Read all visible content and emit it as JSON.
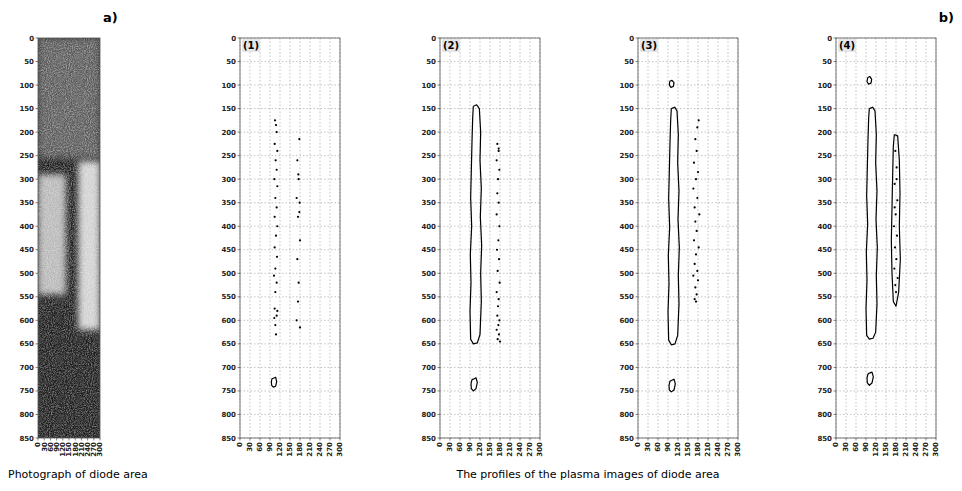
{
  "figure_labels": {
    "a": "a)",
    "b": "b)"
  },
  "captions": {
    "a": "Photograph of diode area",
    "b": "The profiles of the plasma images of diode area"
  },
  "chart_data": [
    {
      "type": "image",
      "title": "",
      "xlim": [
        0,
        300
      ],
      "ylim": [
        850,
        0
      ],
      "xticks": [
        0,
        30,
        60,
        90,
        120,
        150,
        180,
        210,
        240,
        270,
        300
      ],
      "yticks": [
        0,
        50,
        100,
        150,
        200,
        250,
        300,
        350,
        400,
        450,
        500,
        550,
        600,
        650,
        700,
        750,
        800,
        850
      ],
      "grid": false,
      "regions": [
        {
          "x": [
            0,
            300
          ],
          "y": [
            0,
            850
          ],
          "brightness": 12
        },
        {
          "x": [
            0,
            300
          ],
          "y": [
            0,
            255
          ],
          "brightness": 36
        },
        {
          "x": [
            0,
            135
          ],
          "y": [
            290,
            545
          ],
          "brightness": 72
        },
        {
          "x": [
            195,
            300
          ],
          "y": [
            262,
            620
          ],
          "brightness": 82
        }
      ]
    },
    {
      "type": "contour",
      "title": "(1)",
      "xlim": [
        0,
        300
      ],
      "ylim": [
        850,
        0
      ],
      "xticks": [
        0,
        30,
        60,
        90,
        120,
        150,
        180,
        210,
        240,
        270,
        300
      ],
      "yticks": [
        0,
        50,
        100,
        150,
        200,
        250,
        300,
        350,
        400,
        450,
        500,
        550,
        600,
        650,
        700,
        750,
        800,
        850
      ],
      "grid": true,
      "contours": [
        {
          "x": [
            100,
            107,
            110,
            107,
            100,
            95,
            94,
            96,
            100
          ],
          "y": [
            723,
            721,
            730,
            740,
            742,
            738,
            730,
            724,
            723
          ]
        }
      ],
      "points": {
        "x": [
          105,
          108,
          110,
          104,
          112,
          107,
          110,
          103,
          112,
          106,
          110,
          104,
          112,
          108,
          104,
          111,
          106,
          102,
          110,
          106,
          104,
          110,
          106,
          108,
          103,
          112,
          178,
          172,
          176,
          170,
          178,
          174,
          180,
          172,
          176,
          174,
          170,
          180,
          175,
          179
        ],
        "y": [
          175,
          185,
          200,
          225,
          240,
          260,
          280,
          300,
          315,
          340,
          360,
          380,
          400,
          420,
          445,
          465,
          490,
          505,
          520,
          540,
          575,
          590,
          610,
          630,
          595,
          580,
          215,
          260,
          300,
          340,
          370,
          380,
          430,
          470,
          520,
          560,
          600,
          615,
          290,
          350
        ]
      }
    },
    {
      "type": "contour",
      "title": "(2)",
      "xlim": [
        0,
        300
      ],
      "ylim": [
        850,
        0
      ],
      "xticks": [
        0,
        30,
        60,
        90,
        120,
        150,
        180,
        210,
        240,
        270,
        300
      ],
      "yticks": [
        0,
        50,
        100,
        150,
        200,
        250,
        300,
        350,
        400,
        450,
        500,
        550,
        600,
        650,
        700,
        750,
        800,
        850
      ],
      "grid": true,
      "contours": [
        {
          "x": [
            100,
            110,
            118,
            122,
            120,
            124,
            121,
            125,
            122,
            124,
            120,
            112,
            100,
            92,
            90,
            93,
            91,
            95,
            92,
            94,
            96,
            98,
            100
          ],
          "y": [
            145,
            142,
            150,
            200,
            260,
            320,
            380,
            440,
            500,
            560,
            630,
            648,
            650,
            640,
            580,
            520,
            460,
            400,
            340,
            280,
            220,
            170,
            145
          ]
        },
        {
          "x": [
            100,
            108,
            112,
            108,
            100,
            94,
            93,
            96,
            100
          ],
          "y": [
            725,
            722,
            732,
            745,
            750,
            745,
            735,
            726,
            725
          ]
        }
      ],
      "points": {
        "x": [
          172,
          176,
          170,
          178,
          174,
          172,
          176,
          170,
          178,
          175,
          171,
          177,
          173,
          179,
          170,
          176,
          174,
          172,
          178,
          175,
          170,
          177,
          173,
          180,
          176
        ],
        "y": [
          225,
          240,
          260,
          280,
          300,
          330,
          350,
          375,
          400,
          430,
          450,
          470,
          495,
          520,
          540,
          555,
          570,
          590,
          600,
          610,
          620,
          630,
          640,
          645,
          235
        ]
      }
    },
    {
      "type": "contour",
      "title": "(3)",
      "xlim": [
        0,
        300
      ],
      "ylim": [
        850,
        0
      ],
      "xticks": [
        0,
        30,
        60,
        90,
        120,
        150,
        180,
        210,
        240,
        270,
        300
      ],
      "yticks": [
        0,
        50,
        100,
        150,
        200,
        250,
        300,
        350,
        400,
        450,
        500,
        550,
        600,
        650,
        700,
        750,
        800,
        850
      ],
      "grid": true,
      "contours": [
        {
          "x": [
            95,
            102,
            108,
            106,
            99,
            94,
            95
          ],
          "y": [
            92,
            90,
            95,
            103,
            105,
            100,
            92
          ]
        },
        {
          "x": [
            100,
            110,
            117,
            121,
            119,
            123,
            120,
            124,
            121,
            123,
            119,
            111,
            100,
            92,
            90,
            93,
            91,
            95,
            92,
            94,
            96,
            98,
            100
          ],
          "y": [
            150,
            147,
            155,
            205,
            265,
            325,
            385,
            445,
            505,
            565,
            632,
            650,
            652,
            642,
            582,
            522,
            462,
            402,
            342,
            282,
            222,
            175,
            150
          ]
        },
        {
          "x": [
            100,
            108,
            112,
            108,
            100,
            94,
            93,
            96,
            100
          ],
          "y": [
            728,
            725,
            735,
            748,
            752,
            748,
            738,
            729,
            728
          ]
        }
      ],
      "points": {
        "x": [
          182,
          178,
          172,
          176,
          168,
          180,
          174,
          166,
          178,
          170,
          184,
          172,
          176,
          168,
          182,
          174,
          170,
          178,
          166,
          180,
          172,
          176,
          170,
          174
        ],
        "y": [
          175,
          190,
          215,
          240,
          265,
          285,
          300,
          320,
          340,
          360,
          375,
          390,
          410,
          430,
          445,
          460,
          480,
          495,
          505,
          515,
          530,
          545,
          555,
          560
        ]
      }
    },
    {
      "type": "contour",
      "title": "(4)",
      "xlim": [
        0,
        300
      ],
      "ylim": [
        850,
        0
      ],
      "xticks": [
        0,
        30,
        60,
        90,
        120,
        150,
        180,
        210,
        240,
        270,
        300
      ],
      "yticks": [
        0,
        50,
        100,
        150,
        200,
        250,
        300,
        350,
        400,
        450,
        500,
        550,
        600,
        650,
        700,
        750,
        800,
        850
      ],
      "grid": true,
      "contours": [
        {
          "x": [
            95,
            102,
            107,
            105,
            98,
            93,
            95
          ],
          "y": [
            84,
            82,
            88,
            96,
            98,
            93,
            84
          ]
        },
        {
          "x": [
            100,
            110,
            117,
            121,
            119,
            123,
            120,
            124,
            121,
            123,
            119,
            111,
            100,
            92,
            90,
            93,
            91,
            95,
            92,
            94,
            96,
            98,
            100
          ],
          "y": [
            150,
            147,
            155,
            205,
            265,
            325,
            385,
            445,
            505,
            565,
            625,
            638,
            640,
            632,
            575,
            515,
            455,
            395,
            335,
            275,
            215,
            170,
            150
          ]
        },
        {
          "x": [
            100,
            108,
            112,
            108,
            100,
            94,
            93,
            96,
            100
          ],
          "y": [
            712,
            710,
            720,
            733,
            738,
            733,
            722,
            714,
            712
          ]
        },
        {
          "x": [
            175,
            185,
            190,
            192,
            190,
            193,
            188,
            180,
            172,
            168,
            166,
            168,
            170,
            172,
            175
          ],
          "y": [
            205,
            208,
            260,
            330,
            400,
            470,
            540,
            570,
            560,
            500,
            430,
            360,
            290,
            230,
            205
          ]
        }
      ],
      "points": {
        "x": [
          178,
          182,
          176,
          184,
          179,
          174,
          183,
          177,
          181,
          175,
          185,
          178,
          180,
          176,
          182
        ],
        "y": [
          240,
          275,
          310,
          345,
          375,
          400,
          420,
          445,
          470,
          490,
          510,
          525,
          540,
          360,
          300
        ]
      }
    }
  ]
}
